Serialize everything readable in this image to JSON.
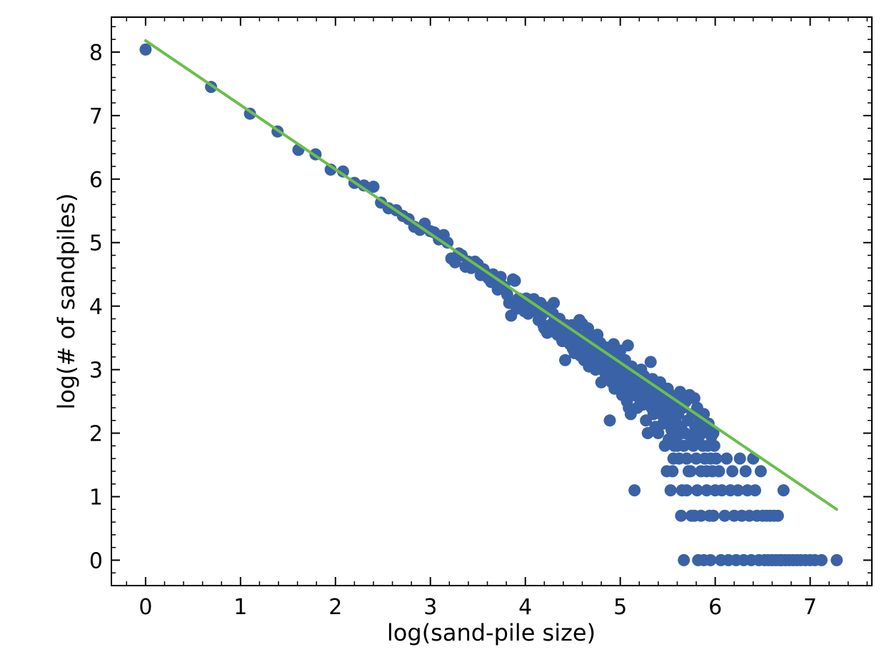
{
  "chart_data": {
    "type": "scatter",
    "xlabel": "log(sand-pile size)",
    "ylabel": "log(# of sandpiles)",
    "xlim": [
      -0.36,
      7.65
    ],
    "ylim": [
      -0.4,
      8.55
    ],
    "xticks": [
      0,
      1,
      2,
      3,
      4,
      5,
      6,
      7
    ],
    "yticks": [
      0,
      1,
      2,
      3,
      4,
      5,
      6,
      7,
      8
    ],
    "minor_tick_step": 0.2,
    "grid": false,
    "colors": {
      "points": "#3a62a6",
      "fit_line": "#6abf4b",
      "frame": "#000000"
    },
    "fit_line": {
      "x": [
        0,
        7.28
      ],
      "y": [
        8.18,
        0.8
      ]
    },
    "series": [
      {
        "points": [
          [
            0.0,
            8.04
          ],
          [
            0.69,
            7.45
          ],
          [
            1.1,
            7.03
          ],
          [
            1.39,
            6.75
          ],
          [
            1.61,
            6.46
          ],
          [
            1.79,
            6.39
          ],
          [
            1.95,
            6.15
          ],
          [
            2.08,
            6.12
          ],
          [
            2.2,
            5.94
          ],
          [
            2.3,
            5.9
          ],
          [
            2.4,
            5.88
          ],
          [
            2.48,
            5.63
          ],
          [
            2.56,
            5.54
          ],
          [
            2.64,
            5.51
          ],
          [
            2.71,
            5.42
          ],
          [
            2.77,
            5.37
          ],
          [
            2.83,
            5.25
          ],
          [
            2.89,
            5.2
          ],
          [
            2.94,
            5.3
          ],
          [
            3.0,
            5.18
          ],
          [
            3.04,
            5.16
          ],
          [
            3.09,
            5.05
          ],
          [
            3.14,
            5.12
          ],
          [
            3.18,
            5.0
          ],
          [
            3.22,
            4.75
          ],
          [
            3.26,
            4.69
          ],
          [
            3.3,
            4.83
          ],
          [
            3.33,
            4.8
          ],
          [
            3.37,
            4.62
          ],
          [
            3.4,
            4.7
          ],
          [
            3.43,
            4.6
          ],
          [
            3.47,
            4.7
          ],
          [
            3.5,
            4.66
          ],
          [
            3.53,
            4.49
          ],
          [
            3.56,
            4.58
          ],
          [
            3.58,
            4.52
          ],
          [
            3.61,
            4.44
          ],
          [
            3.64,
            4.38
          ],
          [
            3.66,
            4.5
          ],
          [
            3.69,
            4.41
          ],
          [
            3.71,
            4.26
          ],
          [
            3.74,
            4.46
          ],
          [
            3.76,
            4.32
          ],
          [
            3.78,
            4.3
          ],
          [
            3.81,
            4.18
          ],
          [
            3.83,
            4.05
          ],
          [
            3.85,
            3.85
          ],
          [
            3.87,
            4.42
          ],
          [
            3.89,
            4.4
          ],
          [
            3.91,
            3.96
          ],
          [
            3.93,
            4.12
          ],
          [
            3.95,
            4.02
          ],
          [
            3.97,
            4.08
          ],
          [
            3.99,
            3.92
          ],
          [
            4.01,
            4.12
          ],
          [
            4.03,
            3.88
          ],
          [
            4.04,
            4.0
          ],
          [
            4.06,
            4.05
          ],
          [
            4.08,
            3.98
          ],
          [
            4.09,
            4.11
          ],
          [
            4.11,
            3.95
          ],
          [
            4.13,
            3.9
          ],
          [
            4.14,
            3.78
          ],
          [
            4.16,
            4.05
          ],
          [
            4.17,
            3.85
          ],
          [
            4.19,
            3.7
          ],
          [
            4.2,
            3.65
          ],
          [
            4.22,
            3.92
          ],
          [
            4.23,
            3.58
          ],
          [
            4.25,
            3.98
          ],
          [
            4.26,
            3.6
          ],
          [
            4.28,
            3.72
          ],
          [
            4.29,
            3.88
          ],
          [
            4.3,
            4.05
          ],
          [
            4.32,
            3.75
          ],
          [
            4.33,
            3.62
          ],
          [
            4.34,
            3.55
          ],
          [
            4.36,
            3.8
          ],
          [
            4.37,
            3.68
          ],
          [
            4.38,
            3.5
          ],
          [
            4.39,
            3.45
          ],
          [
            4.41,
            3.64
          ],
          [
            4.42,
            3.15
          ],
          [
            4.43,
            3.7
          ],
          [
            4.44,
            3.56
          ],
          [
            4.45,
            3.5
          ],
          [
            4.47,
            3.4
          ],
          [
            4.48,
            3.48
          ],
          [
            4.49,
            3.7
          ],
          [
            4.5,
            3.33
          ],
          [
            4.51,
            3.55
          ],
          [
            4.52,
            3.26
          ],
          [
            4.53,
            3.6
          ],
          [
            4.54,
            3.45
          ],
          [
            4.56,
            3.35
          ],
          [
            4.57,
            3.78
          ],
          [
            4.58,
            3.22
          ],
          [
            4.59,
            3.5
          ],
          [
            4.6,
            3.72
          ],
          [
            4.61,
            3.3
          ],
          [
            4.62,
            3.15
          ],
          [
            4.63,
            3.42
          ],
          [
            4.64,
            3.55
          ],
          [
            4.65,
            3.18
          ],
          [
            4.66,
            3.65
          ],
          [
            4.67,
            3.05
          ],
          [
            4.68,
            3.4
          ],
          [
            4.69,
            3.25
          ],
          [
            4.7,
            3.5
          ],
          [
            4.71,
            3.12
          ],
          [
            4.72,
            3.3
          ],
          [
            4.73,
            3.45
          ],
          [
            4.74,
            3.0
          ],
          [
            4.75,
            3.35
          ],
          [
            4.76,
            3.55
          ],
          [
            4.77,
            3.2
          ],
          [
            4.78,
            3.1
          ],
          [
            4.79,
            3.42
          ],
          [
            4.8,
            2.8
          ],
          [
            4.81,
            3.3
          ],
          [
            4.82,
            3.05
          ],
          [
            4.83,
            3.2
          ],
          [
            4.84,
            2.95
          ],
          [
            4.85,
            3.35
          ],
          [
            4.86,
            3.15
          ],
          [
            4.87,
            2.85
          ],
          [
            4.88,
            3.0
          ],
          [
            4.89,
            2.2
          ],
          [
            4.9,
            3.25
          ],
          [
            4.91,
            2.8
          ],
          [
            4.92,
            3.1
          ],
          [
            4.93,
            3.4
          ],
          [
            4.94,
            2.7
          ],
          [
            4.95,
            2.95
          ],
          [
            4.96,
            3.2
          ],
          [
            4.97,
            2.85
          ],
          [
            4.98,
            3.05
          ],
          [
            4.99,
            2.75
          ],
          [
            5.0,
            3.3
          ],
          [
            5.01,
            2.9
          ],
          [
            5.02,
            2.6
          ],
          [
            5.03,
            3.0
          ],
          [
            5.04,
            2.8
          ],
          [
            5.05,
            3.15
          ],
          [
            5.06,
            2.7
          ],
          [
            5.07,
            2.5
          ],
          [
            5.08,
            3.38
          ],
          [
            5.09,
            2.4
          ],
          [
            5.1,
            2.9
          ],
          [
            5.11,
            2.3
          ],
          [
            5.12,
            3.05
          ],
          [
            5.13,
            2.75
          ],
          [
            5.14,
            2.6
          ],
          [
            5.15,
            1.1
          ],
          [
            5.16,
            2.95
          ],
          [
            5.17,
            2.85
          ],
          [
            5.18,
            2.4
          ],
          [
            5.19,
            2.7
          ],
          [
            5.2,
            2.55
          ],
          [
            5.21,
            2.8
          ],
          [
            5.22,
            3.0
          ],
          [
            5.23,
            2.65
          ],
          [
            5.24,
            2.45
          ],
          [
            5.25,
            2.9
          ],
          [
            5.26,
            2.7
          ],
          [
            5.27,
            2.2
          ],
          [
            5.28,
            2.6
          ],
          [
            5.29,
            2.0
          ],
          [
            5.3,
            2.75
          ],
          [
            5.31,
            2.5
          ],
          [
            5.32,
            3.12
          ],
          [
            5.33,
            2.4
          ],
          [
            5.34,
            2.85
          ],
          [
            5.35,
            2.3
          ],
          [
            5.36,
            2.6
          ],
          [
            5.37,
            2.1
          ],
          [
            5.38,
            2.7
          ],
          [
            5.39,
            2.45
          ],
          [
            5.4,
            2.0
          ],
          [
            5.41,
            2.55
          ],
          [
            5.42,
            2.8
          ],
          [
            5.43,
            2.3
          ],
          [
            5.44,
            2.6
          ],
          [
            5.45,
            2.15
          ],
          [
            5.46,
            2.4
          ],
          [
            5.47,
            1.8
          ],
          [
            5.48,
            2.5
          ],
          [
            5.49,
            2.2
          ],
          [
            5.5,
            2.7
          ],
          [
            5.51,
            1.9
          ],
          [
            5.52,
            2.35
          ],
          [
            5.53,
            2.6
          ],
          [
            5.54,
            2.05
          ],
          [
            5.55,
            1.4
          ],
          [
            5.56,
            2.45
          ],
          [
            5.57,
            1.8
          ],
          [
            5.58,
            2.2
          ],
          [
            5.59,
            2.55
          ],
          [
            5.6,
            1.95
          ],
          [
            5.61,
            2.3
          ],
          [
            5.62,
            1.6
          ],
          [
            5.63,
            2.65
          ],
          [
            5.64,
            2.1
          ],
          [
            5.65,
            1.1
          ],
          [
            5.66,
            2.4
          ],
          [
            5.67,
            1.8
          ],
          [
            5.68,
            2.0
          ],
          [
            5.69,
            2.5
          ],
          [
            5.7,
            1.6
          ],
          [
            5.71,
            2.2
          ],
          [
            5.72,
            1.4
          ],
          [
            5.73,
            2.6
          ],
          [
            5.74,
            1.95
          ],
          [
            5.75,
            0.7
          ],
          [
            5.76,
            2.3
          ],
          [
            5.77,
            1.8
          ],
          [
            5.78,
            2.55
          ],
          [
            5.79,
            2.1
          ],
          [
            5.8,
            1.6
          ],
          [
            5.81,
            2.4
          ],
          [
            5.82,
            0.0
          ],
          [
            5.83,
            1.95
          ],
          [
            5.84,
            2.2
          ],
          [
            5.85,
            1.4
          ],
          [
            5.86,
            2.0
          ],
          [
            5.87,
            1.8
          ],
          [
            5.88,
            2.3
          ],
          [
            5.89,
            1.6
          ],
          [
            5.9,
            2.05
          ],
          [
            5.91,
            1.1
          ],
          [
            5.92,
            1.8
          ],
          [
            5.93,
            2.15
          ],
          [
            5.94,
            0.7
          ],
          [
            5.95,
            1.6
          ],
          [
            5.96,
            1.95
          ],
          [
            5.97,
            1.4
          ],
          [
            5.98,
            2.0
          ],
          [
            5.99,
            1.8
          ],
          [
            6.0,
            1.1
          ],
          [
            5.49,
            1.4
          ],
          [
            5.53,
            1.1
          ],
          [
            5.56,
            1.6
          ],
          [
            5.6,
            1.8
          ],
          [
            5.64,
            0.7
          ],
          [
            5.67,
            0.0
          ],
          [
            5.7,
            1.1
          ],
          [
            5.74,
            1.4
          ],
          [
            5.78,
            0.7
          ],
          [
            5.81,
            1.1
          ],
          [
            5.85,
            0.7
          ],
          [
            5.88,
            0.0
          ],
          [
            5.91,
            1.4
          ],
          [
            5.95,
            0.0
          ],
          [
            5.98,
            0.7
          ],
          [
            6.01,
            1.6
          ],
          [
            6.04,
            1.4
          ],
          [
            6.06,
            0.0
          ],
          [
            6.07,
            1.1
          ],
          [
            6.1,
            0.7
          ],
          [
            6.12,
            1.6
          ],
          [
            6.14,
            0.0
          ],
          [
            6.16,
            1.1
          ],
          [
            6.18,
            1.4
          ],
          [
            6.2,
            0.7
          ],
          [
            6.22,
            0.0
          ],
          [
            6.24,
            1.1
          ],
          [
            6.26,
            1.6
          ],
          [
            6.28,
            0.7
          ],
          [
            6.3,
            0.0
          ],
          [
            6.32,
            1.4
          ],
          [
            6.34,
            1.1
          ],
          [
            6.36,
            0.7
          ],
          [
            6.38,
            0.0
          ],
          [
            6.4,
            1.6
          ],
          [
            6.42,
            1.1
          ],
          [
            6.44,
            0.7
          ],
          [
            6.46,
            0.0
          ],
          [
            6.48,
            1.4
          ],
          [
            6.5,
            0.7
          ],
          [
            6.52,
            0.0
          ],
          [
            6.54,
            0.7
          ],
          [
            6.56,
            0.0
          ],
          [
            6.58,
            0.7
          ],
          [
            6.6,
            0.0
          ],
          [
            6.62,
            0.7
          ],
          [
            6.64,
            0.0
          ],
          [
            6.66,
            0.7
          ],
          [
            6.68,
            0.0
          ],
          [
            6.72,
            1.1
          ],
          [
            6.7,
            0.0
          ],
          [
            6.74,
            0.0
          ],
          [
            6.78,
            0.0
          ],
          [
            6.82,
            0.0
          ],
          [
            6.86,
            0.0
          ],
          [
            6.9,
            0.0
          ],
          [
            6.95,
            0.0
          ],
          [
            7.0,
            0.0
          ],
          [
            7.05,
            0.0
          ],
          [
            7.12,
            0.0
          ],
          [
            7.28,
            0.0
          ]
        ]
      }
    ]
  }
}
